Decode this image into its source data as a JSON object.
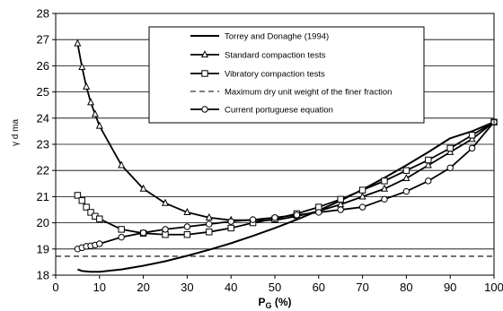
{
  "chart_data": {
    "type": "line",
    "title": "",
    "xlabel_main": "P",
    "xlabel_sub": "G",
    "xlabel_suffix": " (%)",
    "ylabel": "γ d ma",
    "xlim": [
      0,
      100
    ],
    "ylim": [
      18,
      28
    ],
    "x_ticks": [
      "0",
      "10",
      "20",
      "30",
      "40",
      "50",
      "60",
      "70",
      "80",
      "90",
      "100"
    ],
    "y_ticks": [
      "18",
      "19",
      "20",
      "21",
      "22",
      "23",
      "24",
      "25",
      "26",
      "27",
      "28"
    ],
    "grid": "horizontal",
    "legend_position": "top-right",
    "series": [
      {
        "name": "Torrey and Donaghe (1994)",
        "style": "solid-thick",
        "marker": "none",
        "x": [
          5,
          6,
          8,
          10,
          15,
          20,
          25,
          30,
          35,
          40,
          45,
          50,
          55,
          60,
          65,
          70,
          75,
          80,
          85,
          90,
          95,
          100
        ],
        "y": [
          18.22,
          18.16,
          18.13,
          18.13,
          18.22,
          18.36,
          18.53,
          18.74,
          18.97,
          19.22,
          19.5,
          19.8,
          20.12,
          20.47,
          20.85,
          21.27,
          21.72,
          22.2,
          22.7,
          23.23,
          23.5,
          23.85
        ]
      },
      {
        "name": "Standard compaction tests",
        "style": "solid",
        "marker": "triangle",
        "x": [
          5,
          6,
          7,
          8,
          9,
          10,
          15,
          20,
          25,
          30,
          35,
          40,
          45,
          50,
          55,
          60,
          65,
          70,
          75,
          80,
          85,
          90,
          95,
          100
        ],
        "y": [
          26.85,
          25.95,
          25.2,
          24.6,
          24.15,
          23.7,
          22.2,
          21.3,
          20.75,
          20.4,
          20.2,
          20.1,
          20.1,
          20.1,
          20.25,
          20.45,
          20.7,
          21.0,
          21.3,
          21.7,
          22.2,
          22.7,
          23.2,
          23.85
        ]
      },
      {
        "name": "Vibratory compaction tests",
        "style": "solid",
        "marker": "square",
        "x": [
          5,
          6,
          7,
          8,
          9,
          10,
          15,
          20,
          25,
          30,
          35,
          40,
          45,
          50,
          55,
          60,
          65,
          70,
          75,
          80,
          85,
          90,
          95,
          100
        ],
        "y": [
          21.05,
          20.85,
          20.6,
          20.4,
          20.25,
          20.15,
          19.75,
          19.6,
          19.55,
          19.55,
          19.65,
          19.8,
          20.0,
          20.15,
          20.35,
          20.6,
          20.9,
          21.25,
          21.6,
          22.0,
          22.4,
          22.85,
          23.35,
          23.85
        ]
      },
      {
        "name": "Maximum dry unit weight of the finer fraction",
        "style": "dashed",
        "marker": "none",
        "x": [
          0,
          100
        ],
        "y": [
          18.72,
          18.72
        ]
      },
      {
        "name": "Current portuguese equation",
        "style": "solid",
        "marker": "circle",
        "x": [
          5,
          6,
          7,
          8,
          9,
          10,
          15,
          20,
          25,
          30,
          35,
          40,
          45,
          50,
          55,
          60,
          65,
          70,
          75,
          80,
          85,
          90,
          95,
          100
        ],
        "y": [
          19.0,
          19.05,
          19.1,
          19.12,
          19.15,
          19.2,
          19.45,
          19.62,
          19.75,
          19.85,
          19.95,
          20.05,
          20.12,
          20.2,
          20.3,
          20.4,
          20.5,
          20.6,
          20.9,
          21.2,
          21.6,
          22.1,
          22.85,
          23.85
        ]
      }
    ]
  }
}
